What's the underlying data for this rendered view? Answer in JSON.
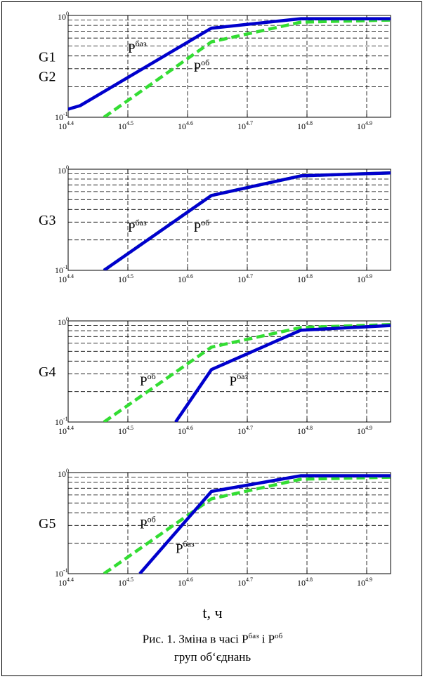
{
  "chart_data": [
    {
      "type": "line",
      "yscale": "log",
      "xlim": [
        4.4,
        4.94
      ],
      "ylim": [
        0.1,
        1.0
      ],
      "xticks": [
        4.4,
        4.5,
        4.6,
        4.7,
        4.8,
        4.9
      ],
      "ytick_labels": [
        "10^-1",
        "10^0"
      ],
      "grid": true,
      "group_labels": [
        "G1",
        "G2"
      ],
      "series": [
        {
          "line_label": "P^баз",
          "color": "#0000cc",
          "dash": "solid",
          "x": [
            4.4,
            4.42,
            4.64,
            4.79,
            4.94
          ],
          "y": [
            0.12,
            0.13,
            0.75,
            0.93,
            0.93
          ]
        },
        {
          "line_label": "P^об",
          "color": "#33dd33",
          "dash": "dashed",
          "x": [
            4.46,
            4.64,
            4.79,
            4.94
          ],
          "y": [
            0.1,
            0.55,
            0.86,
            0.9
          ]
        }
      ],
      "annotations": [
        {
          "base": "P",
          "sup": "баз",
          "x": 4.5,
          "y": 0.43
        },
        {
          "base": "P",
          "sup": "об",
          "x": 4.61,
          "y": 0.28
        }
      ]
    },
    {
      "type": "line",
      "yscale": "log",
      "xlim": [
        4.4,
        4.94
      ],
      "ylim": [
        0.1,
        1.0
      ],
      "xticks": [
        4.4,
        4.5,
        4.6,
        4.7,
        4.8,
        4.9
      ],
      "ytick_labels": [
        "10^-1",
        "10^0"
      ],
      "grid": true,
      "group_labels": [
        "G3"
      ],
      "series": [
        {
          "line_label": "P^баз",
          "color": "#0000cc",
          "dash": "solid",
          "x": [
            4.46,
            4.64,
            4.79,
            4.94
          ],
          "y": [
            0.1,
            0.55,
            0.86,
            0.92
          ]
        },
        {
          "line_label": "P^об",
          "color": "#33dd33",
          "dash": "dashed",
          "x": [
            4.46,
            4.64,
            4.79,
            4.94
          ],
          "y": [
            0.1,
            0.55,
            0.86,
            0.92
          ]
        }
      ],
      "annotations": [
        {
          "base": "P",
          "sup": "баз",
          "x": 4.5,
          "y": 0.24
        },
        {
          "base": "P",
          "sup": "об",
          "x": 4.61,
          "y": 0.24
        }
      ]
    },
    {
      "type": "line",
      "yscale": "log",
      "xlim": [
        4.4,
        4.94
      ],
      "ylim": [
        0.1,
        1.0
      ],
      "xticks": [
        4.4,
        4.5,
        4.6,
        4.7,
        4.8,
        4.9
      ],
      "ytick_labels": [
        "10^-1",
        "10^0"
      ],
      "grid": true,
      "group_labels": [
        "G4"
      ],
      "series": [
        {
          "line_label": "P^об",
          "color": "#33dd33",
          "dash": "dashed",
          "x": [
            4.46,
            4.64,
            4.79,
            4.94
          ],
          "y": [
            0.1,
            0.55,
            0.86,
            0.92
          ]
        },
        {
          "line_label": "P^баз",
          "color": "#0000cc",
          "dash": "solid",
          "x": [
            4.58,
            4.64,
            4.79,
            4.94
          ],
          "y": [
            0.1,
            0.33,
            0.81,
            0.9
          ]
        }
      ],
      "annotations": [
        {
          "base": "P",
          "sup": "об",
          "x": 4.52,
          "y": 0.23
        },
        {
          "base": "P",
          "sup": "баз",
          "x": 4.67,
          "y": 0.23
        }
      ]
    },
    {
      "type": "line",
      "yscale": "log",
      "xlim": [
        4.4,
        4.94
      ],
      "ylim": [
        0.1,
        1.0
      ],
      "xticks": [
        4.4,
        4.5,
        4.6,
        4.7,
        4.8,
        4.9
      ],
      "ytick_labels": [
        "10^-1",
        "10^0"
      ],
      "grid": true,
      "group_labels": [
        "G5"
      ],
      "series": [
        {
          "line_label": "P^об",
          "color": "#33dd33",
          "dash": "dashed",
          "x": [
            4.46,
            4.64,
            4.79,
            4.94
          ],
          "y": [
            0.1,
            0.55,
            0.86,
            0.9
          ]
        },
        {
          "line_label": "P^баз",
          "color": "#0000cc",
          "dash": "solid",
          "x": [
            4.52,
            4.64,
            4.79,
            4.94
          ],
          "y": [
            0.1,
            0.65,
            0.93,
            0.93
          ]
        }
      ],
      "annotations": [
        {
          "base": "P",
          "sup": "об",
          "x": 4.52,
          "y": 0.28
        },
        {
          "base": "P",
          "sup": "баз",
          "x": 4.58,
          "y": 0.16
        }
      ]
    }
  ],
  "xlabel": "t, ч",
  "caption": {
    "line1_prefix": "Рис. 1. Зміна в часі  P",
    "line1_sup1": "баз",
    "line1_middle": "  і P",
    "line1_sup2": "об",
    "line2": "груп об‘єднань"
  }
}
